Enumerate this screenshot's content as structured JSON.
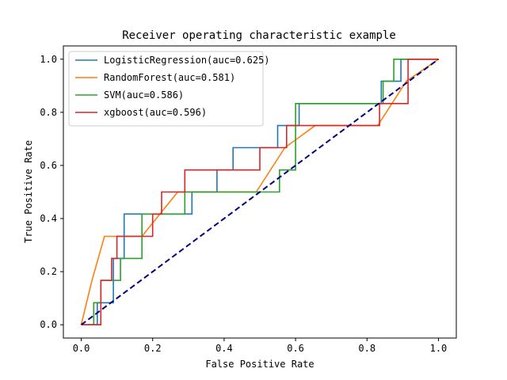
{
  "chart_data": {
    "type": "line",
    "title": "Receiver operating characteristic example",
    "xlabel": "False Positive Rate",
    "ylabel": "True Positive Rate",
    "xlim": [
      -0.05,
      1.05
    ],
    "ylim": [
      -0.05,
      1.05
    ],
    "xticks": [
      "0.0",
      "0.2",
      "0.4",
      "0.6",
      "0.8",
      "1.0"
    ],
    "yticks": [
      "0.0",
      "0.2",
      "0.4",
      "0.6",
      "0.8",
      "1.0"
    ],
    "grid": false,
    "legend_position": "top-left",
    "series": [
      {
        "name": "LogisticRegression(auc=0.625)",
        "color": "#1f77b4",
        "x": [
          0,
          0.045,
          0.045,
          0.09,
          0.09,
          0.12,
          0.12,
          0.195,
          0.195,
          0.31,
          0.31,
          0.38,
          0.38,
          0.425,
          0.425,
          0.55,
          0.55,
          0.61,
          0.61,
          0.84,
          0.84,
          0.895,
          0.895,
          1.0
        ],
        "y": [
          0,
          0,
          0.083,
          0.083,
          0.25,
          0.25,
          0.417,
          0.417,
          0.417,
          0.417,
          0.5,
          0.5,
          0.583,
          0.583,
          0.667,
          0.667,
          0.75,
          0.75,
          0.833,
          0.833,
          0.917,
          0.917,
          1.0,
          1.0
        ]
      },
      {
        "name": "RandomForest(auc=0.581)",
        "color": "#ff7f0e",
        "x": [
          0,
          0.03,
          0.065,
          0.17,
          0.27,
          0.49,
          0.57,
          0.655,
          0.83,
          0.91,
          1.0
        ],
        "y": [
          0,
          0.167,
          0.333,
          0.333,
          0.5,
          0.5,
          0.667,
          0.75,
          0.75,
          0.917,
          1.0
        ]
      },
      {
        "name": "SVM(auc=0.586)",
        "color": "#2ca02c",
        "x": [
          0,
          0.035,
          0.035,
          0.055,
          0.055,
          0.11,
          0.11,
          0.17,
          0.17,
          0.29,
          0.29,
          0.555,
          0.555,
          0.6,
          0.6,
          0.67,
          0.67,
          0.845,
          0.845,
          0.865,
          0.865,
          0.875,
          0.875,
          1.0
        ],
        "y": [
          0,
          0,
          0.083,
          0.083,
          0.167,
          0.167,
          0.25,
          0.25,
          0.417,
          0.417,
          0.5,
          0.5,
          0.583,
          0.583,
          0.833,
          0.833,
          0.833,
          0.833,
          0.917,
          0.917,
          0.917,
          0.917,
          1.0,
          1.0
        ]
      },
      {
        "name": "xgboost(auc=0.596)",
        "color": "#d62728",
        "x": [
          0,
          0.055,
          0.055,
          0.085,
          0.085,
          0.1,
          0.1,
          0.2,
          0.2,
          0.225,
          0.225,
          0.29,
          0.29,
          0.5,
          0.5,
          0.575,
          0.575,
          0.655,
          0.655,
          0.835,
          0.835,
          0.915,
          0.915,
          1.0
        ],
        "y": [
          0,
          0,
          0.167,
          0.167,
          0.25,
          0.25,
          0.333,
          0.333,
          0.417,
          0.417,
          0.5,
          0.5,
          0.583,
          0.583,
          0.667,
          0.667,
          0.75,
          0.75,
          0.75,
          0.75,
          0.833,
          0.833,
          1.0,
          1.0
        ]
      }
    ],
    "reference_line": {
      "color": "#000080",
      "style": "dashed",
      "x": [
        0,
        1
      ],
      "y": [
        0,
        1
      ]
    }
  }
}
